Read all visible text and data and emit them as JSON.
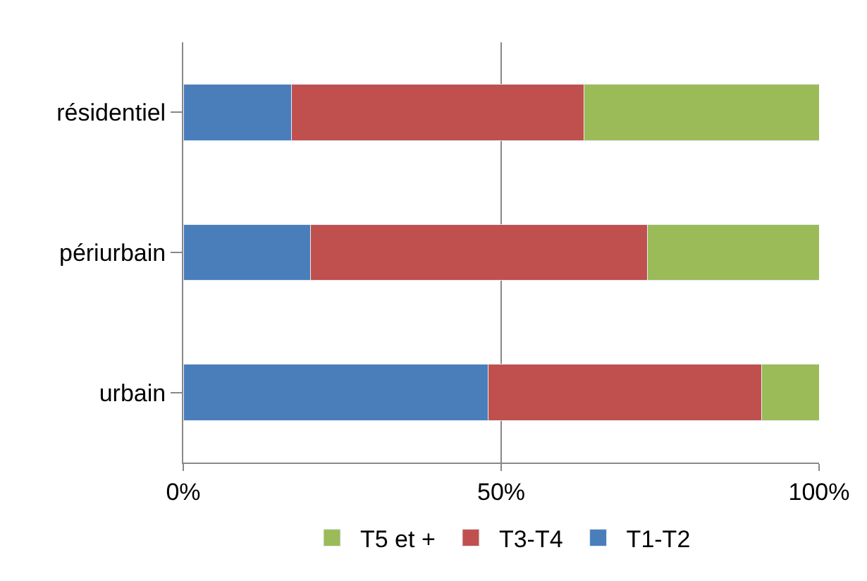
{
  "chart_data": {
    "type": "bar",
    "orientation": "horizontal",
    "stacked": true,
    "categories": [
      "résidentiel",
      "périurbain",
      "urbain"
    ],
    "series": [
      {
        "name": "T1-T2",
        "color": "#4a7ebb",
        "values": [
          17,
          20,
          48
        ]
      },
      {
        "name": "T3-T4",
        "color": "#c0504d",
        "values": [
          46,
          53,
          43
        ]
      },
      {
        "name": "T5 et +",
        "color": "#9bbb59",
        "values": [
          37,
          27,
          9
        ]
      }
    ],
    "xlim": [
      0,
      100
    ],
    "xticks": [
      {
        "value": 0,
        "label": "0%"
      },
      {
        "value": 50,
        "label": "50%"
      },
      {
        "value": 100,
        "label": "100%"
      }
    ],
    "grid": "x",
    "legend": "bottom"
  }
}
